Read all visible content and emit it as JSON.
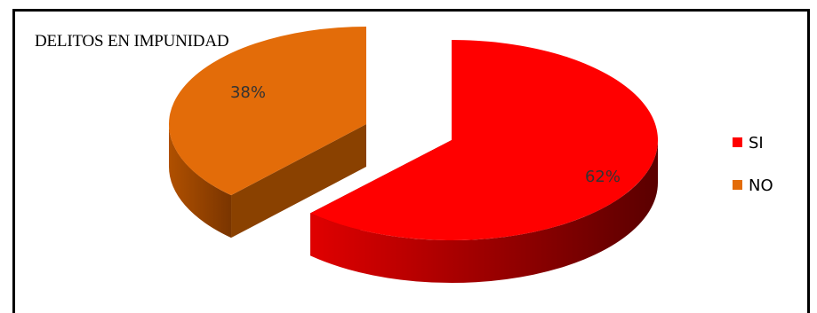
{
  "chart_data": {
    "type": "pie",
    "title": "DELITOS EN IMPUNIDAD",
    "categories": [
      "SI",
      "NO"
    ],
    "values": [
      62,
      38
    ],
    "data_labels": [
      "62%",
      "38%"
    ],
    "legend_position": "right",
    "colors": {
      "SI": "#ff0000",
      "NO": "#e36c09"
    },
    "style": "3d-exploded"
  }
}
